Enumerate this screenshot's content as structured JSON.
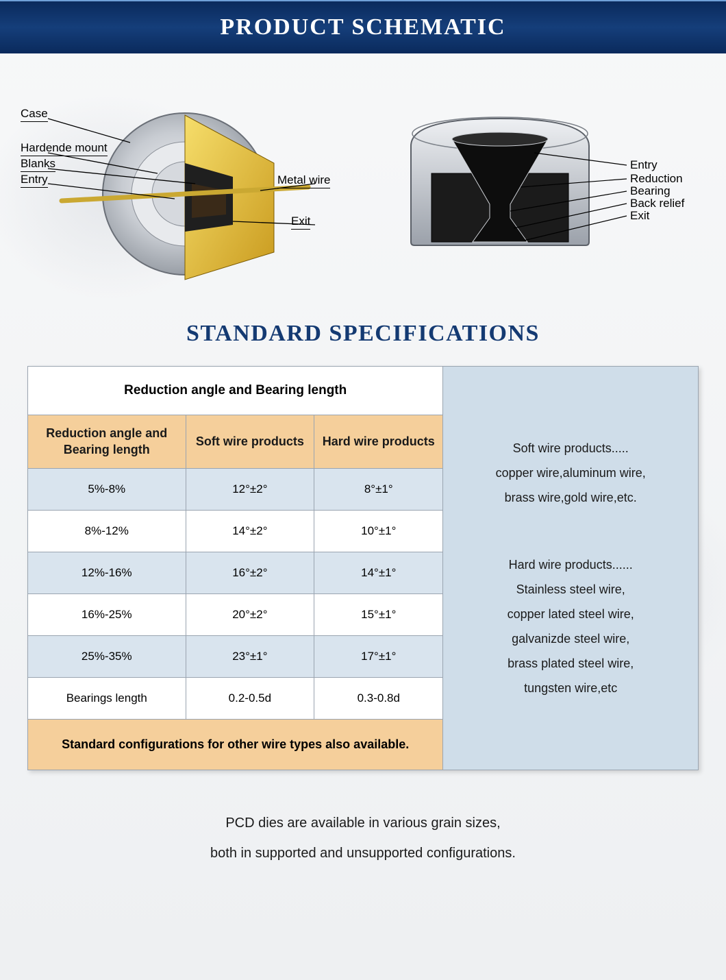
{
  "banner_title": "PRODUCT SCHEMATIC",
  "spec_title": "STANDARD SPECIFICATIONS",
  "colors": {
    "banner_bg_top": "#0a2a5c",
    "banner_bg_mid": "#153e7a",
    "accent_header": "#f5cf9b",
    "row_shade": "#d9e4ee",
    "desc_bg": "#cfdde9",
    "title_text": "#143a72",
    "border": "#9aa4b0",
    "die_case": "#b8bcc2",
    "die_cut": "#e8c23a",
    "die_blank": "#2a2a2a",
    "wire": "#caa832",
    "cross_outer": "#c6cad0",
    "cross_inner": "#1f1f1f"
  },
  "diagram_left": {
    "labels_left": [
      "Case",
      "Hardende mount",
      "Blanks",
      "Entry"
    ],
    "labels_right": [
      "Metal wire",
      "Exit"
    ]
  },
  "diagram_right": {
    "labels": [
      "Entry",
      "Reduction",
      "Bearing",
      "Back relief",
      "Exit"
    ]
  },
  "table": {
    "caption": "Reduction angle and Bearing length",
    "columns": [
      "Reduction angle and Bearing length",
      "Soft wire products",
      "Hard wire products"
    ],
    "rows": [
      {
        "shade": true,
        "cells": [
          "5%-8%",
          "12°±2°",
          "8°±1°"
        ]
      },
      {
        "shade": false,
        "cells": [
          "8%-12%",
          "14°±2°",
          "10°±1°"
        ]
      },
      {
        "shade": true,
        "cells": [
          "12%-16%",
          "16°±2°",
          "14°±1°"
        ]
      },
      {
        "shade": false,
        "cells": [
          "16%-25%",
          "20°±2°",
          "15°±1°"
        ]
      },
      {
        "shade": true,
        "cells": [
          "25%-35%",
          "23°±1°",
          "17°±1°"
        ]
      },
      {
        "shade": false,
        "cells": [
          "Bearings length",
          "0.2-0.5d",
          "0.3-0.8d"
        ]
      }
    ],
    "footer": "Standard configurations for other wire types also available."
  },
  "descriptions": {
    "soft": {
      "heading": "Soft wire products.....",
      "lines": [
        "copper wire,aluminum wire,",
        "brass wire,gold wire,etc."
      ]
    },
    "hard": {
      "heading": "Hard wire products......",
      "lines": [
        "Stainless steel wire,",
        "copper lated steel wire,",
        "galvanizde steel wire,",
        "brass plated steel wire,",
        "tungsten wire,etc"
      ]
    }
  },
  "bottom_note": {
    "line1": "PCD dies are available in various grain sizes,",
    "line2": "both in supported and unsupported configurations."
  }
}
